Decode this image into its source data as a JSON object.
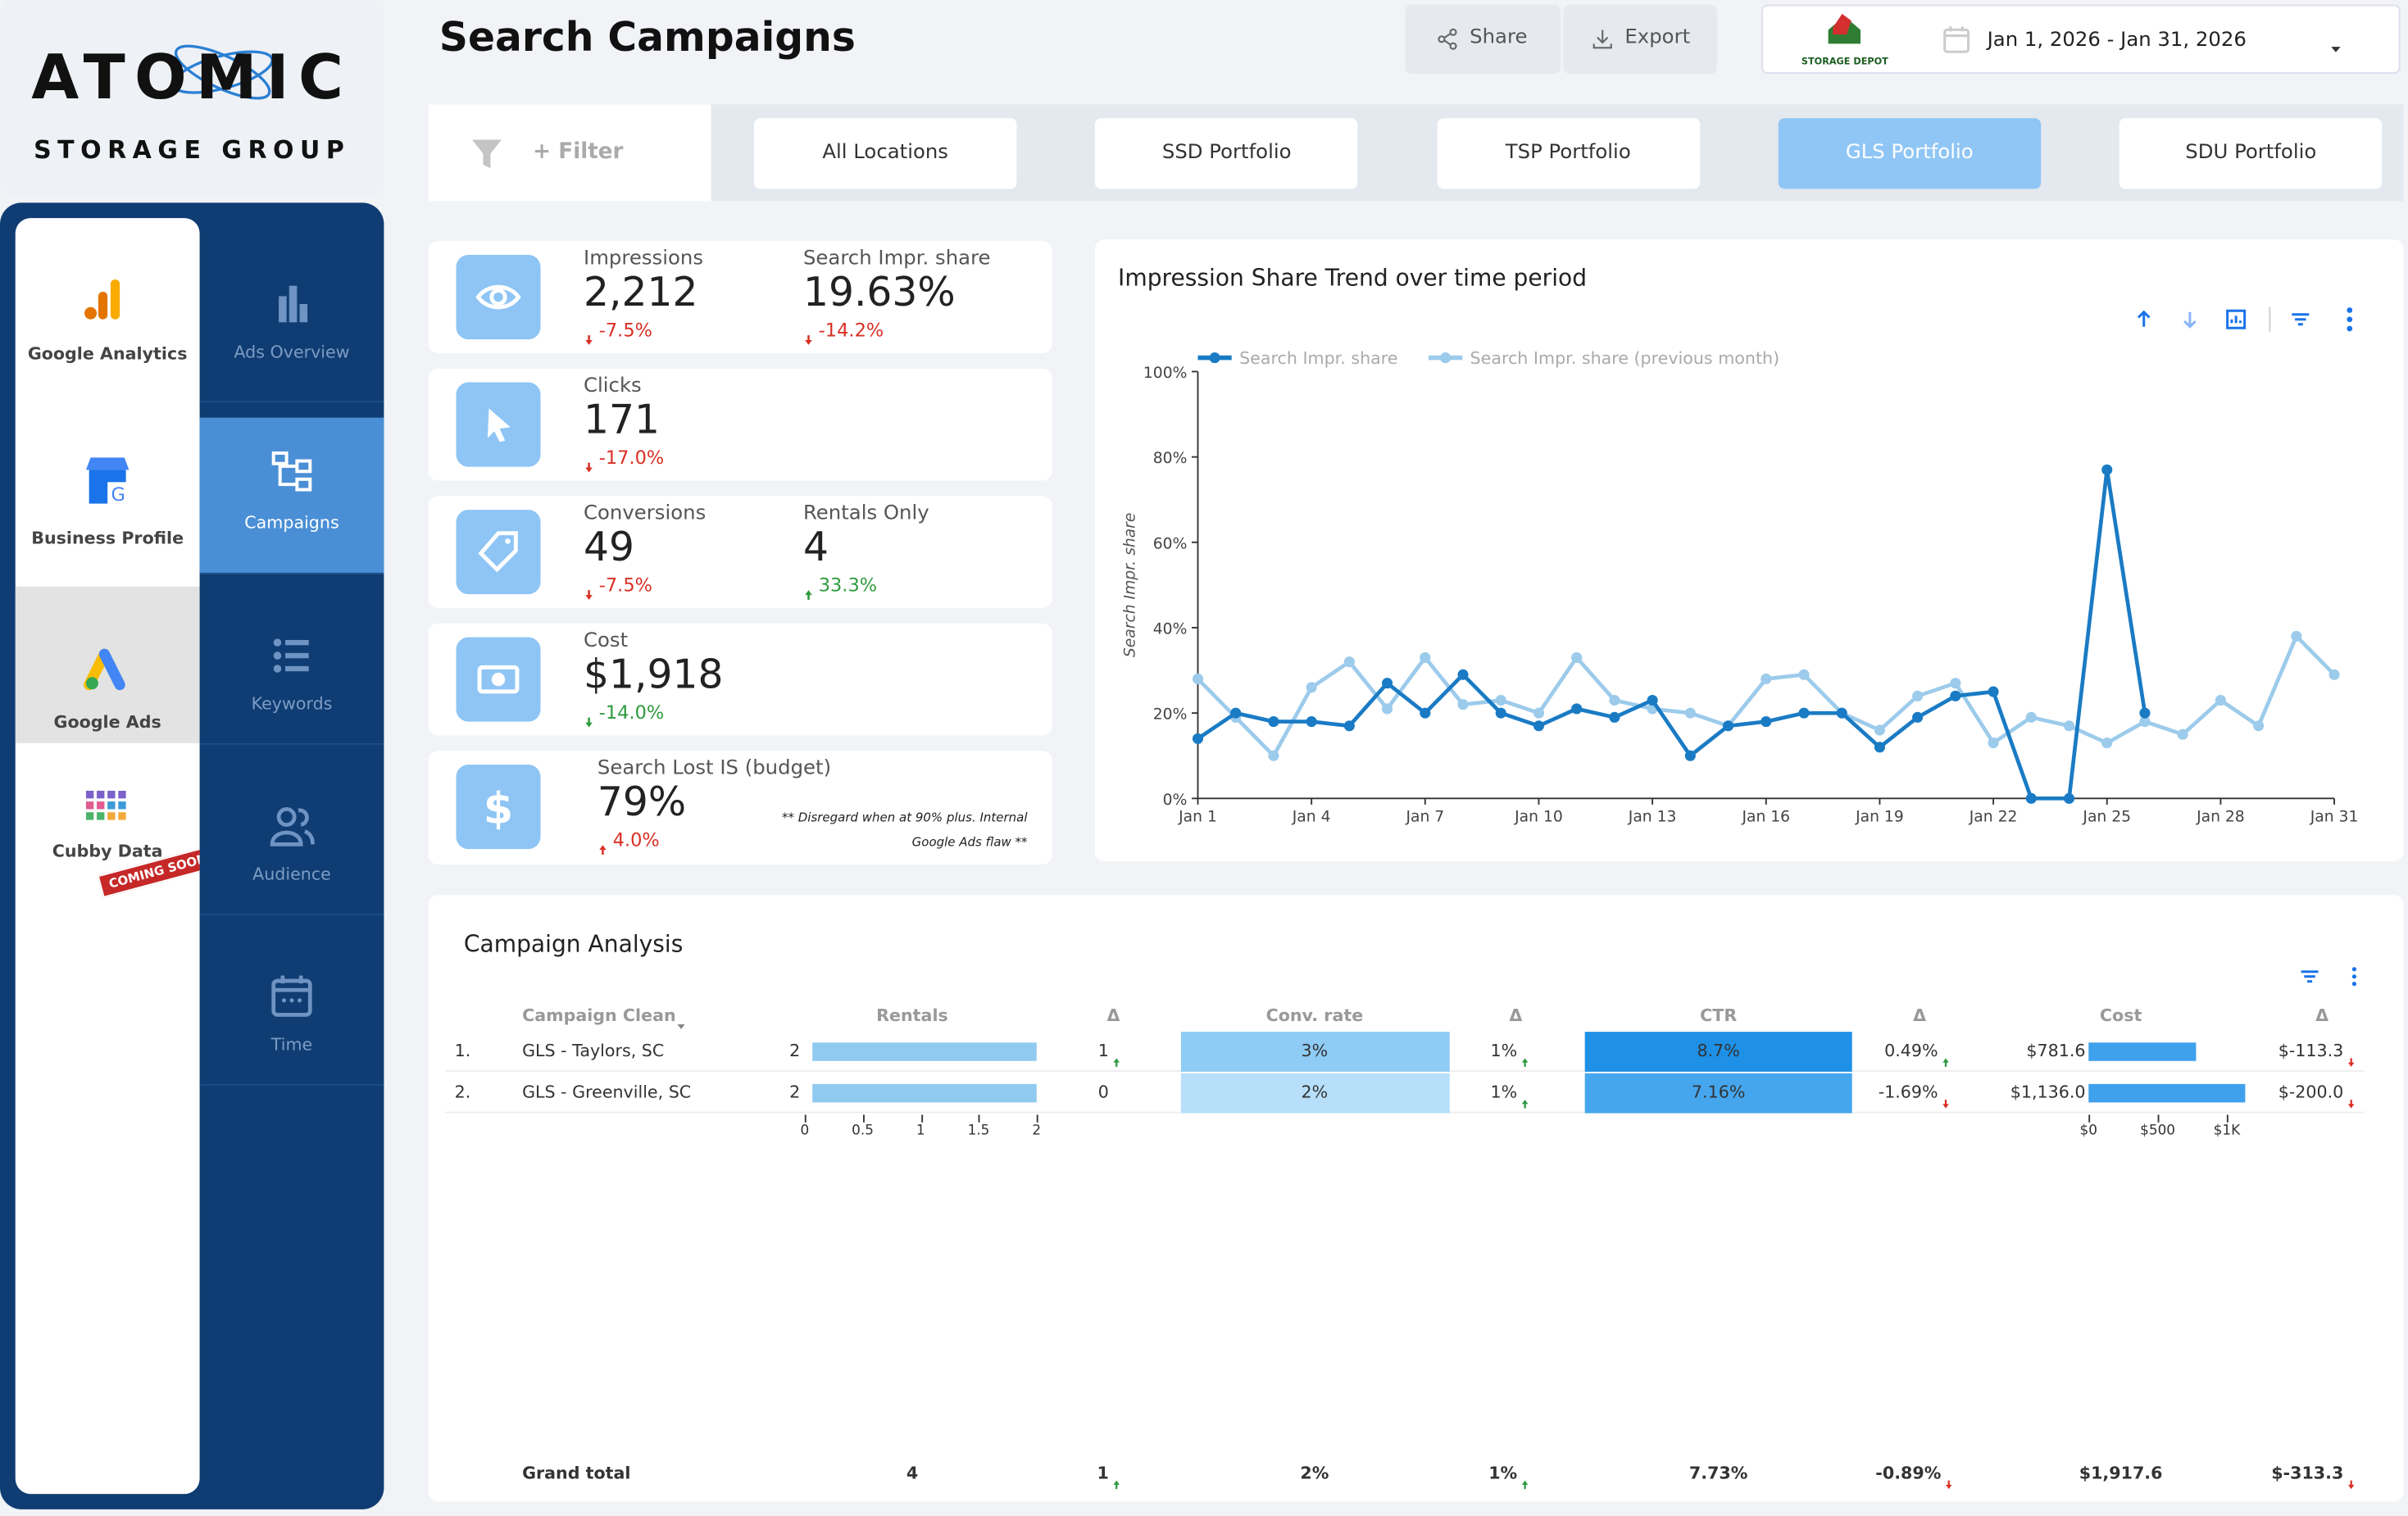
{
  "brand": {
    "name": "ATOMIC",
    "tagline": "STORAGE GROUP"
  },
  "nav": {
    "sources": [
      "Google Analytics",
      "Business Profile",
      "Google Ads",
      "Cubby Data"
    ],
    "badge": "COMING SOON",
    "active_source": 2,
    "pages": [
      "Ads Overview",
      "Campaigns",
      "Keywords",
      "Audience",
      "Time"
    ],
    "active_page": 1
  },
  "header": {
    "title": "Search Campaigns",
    "share": "Share",
    "export": "Export",
    "client_logo": "STORAGE DEPOT",
    "date_range": "Jan 1, 2026 - Jan 31, 2026"
  },
  "filters": {
    "filter": "+ Filter",
    "tabs": [
      "All Locations",
      "SSD Portfolio",
      "TSP Portfolio",
      "GLS Portfolio",
      "SDU Portfolio"
    ],
    "active": 3
  },
  "kpis": [
    {
      "metrics": [
        {
          "label": "Impressions",
          "value": "2,212",
          "delta": "-7.5%",
          "trend": "down",
          "good": false
        },
        {
          "label": "Search Impr. share",
          "value": "19.63%",
          "delta": "-14.2%",
          "trend": "down",
          "good": false
        }
      ]
    },
    {
      "metrics": [
        {
          "label": "Clicks",
          "value": "171",
          "delta": "-17.0%",
          "trend": "down",
          "good": false
        }
      ]
    },
    {
      "metrics": [
        {
          "label": "Conversions",
          "value": "49",
          "delta": "-7.5%",
          "trend": "down",
          "good": false
        },
        {
          "label": "Rentals Only",
          "value": "4",
          "delta": "33.3%",
          "trend": "up",
          "good": true
        }
      ]
    },
    {
      "metrics": [
        {
          "label": "Cost",
          "value": "$1,918",
          "delta": "-14.0%",
          "trend": "down",
          "good": true
        }
      ]
    },
    {
      "metrics": [
        {
          "label": "Search Lost IS (budget)",
          "value": "79%",
          "delta": "4.0%",
          "trend": "up",
          "good": false
        }
      ],
      "note": "** Disregard when at 90% plus. Internal Google Ads flaw **"
    }
  ],
  "chart_data": {
    "type": "line",
    "title": "Impression Share Trend over time period",
    "y_label": "Search Impr. share",
    "categories": [
      "Jan 1",
      null,
      null,
      "Jan 4",
      null,
      null,
      "Jan 7",
      null,
      null,
      "Jan 10",
      null,
      null,
      "Jan 13",
      null,
      null,
      "Jan 16",
      null,
      null,
      "Jan 19",
      null,
      null,
      "Jan 22",
      null,
      null,
      "Jan 25",
      null,
      null,
      "Jan 28",
      null,
      null,
      "Jan 31"
    ],
    "series": [
      {
        "name": "Search Impr. share",
        "color": "#1a7bc4",
        "values": [
          14,
          20,
          18,
          18,
          17,
          27,
          20,
          29,
          20,
          17,
          21,
          19,
          23,
          10,
          17,
          18,
          20,
          20,
          12,
          19,
          24,
          25,
          0,
          0,
          77,
          20,
          null,
          null,
          null,
          null,
          null
        ]
      },
      {
        "name": "Search Impr. share (previous month)",
        "color": "#9ccbeb",
        "values": [
          28,
          19,
          10,
          26,
          32,
          21,
          33,
          22,
          23,
          20,
          33,
          23,
          21,
          20,
          17,
          28,
          29,
          20,
          16,
          24,
          27,
          13,
          19,
          17,
          13,
          18,
          15,
          23,
          17,
          38,
          29
        ]
      }
    ],
    "ylim": [
      0,
      100
    ],
    "yticks": [
      {
        "value": 0,
        "label": "0%"
      },
      {
        "value": 20,
        "label": "20%"
      },
      {
        "value": 40,
        "label": "40%"
      },
      {
        "value": 60,
        "label": "60%"
      },
      {
        "value": 80,
        "label": "80%"
      },
      {
        "value": 100,
        "label": "100%"
      }
    ],
    "grid": false,
    "legend": "top-left"
  },
  "table": {
    "title": "Campaign Analysis",
    "columns": [
      "Campaign Clean",
      "Rentals",
      "Δ",
      "Conv. rate",
      "Δ",
      "CTR",
      "Δ",
      "Cost",
      "Δ"
    ],
    "rows": [
      {
        "index": "1.",
        "campaign": "GLS - Taylors, SC",
        "rentals": 2,
        "rentals_delta": "1",
        "rentals_trend": "up",
        "conv": "3%",
        "conv_delta": "1%",
        "conv_trend": "up",
        "ctr": "8.7%",
        "ctr_delta": "0.49%",
        "ctr_trend": "up",
        "cost": {
          "value": 781.6,
          "label": "$781.6"
        },
        "cost_delta": "$-113.3",
        "cost_trend": "down"
      },
      {
        "index": "2.",
        "campaign": "GLS - Greenville, SC",
        "rentals": 2,
        "rentals_delta": "0",
        "conv": "2%",
        "conv_delta": "1%",
        "conv_trend": "up",
        "ctr": "7.16%",
        "ctr_delta": "-1.69%",
        "ctr_trend": "down",
        "cost": {
          "value": 1136.0,
          "label": "$1,136.0"
        },
        "cost_delta": "$-200.0",
        "cost_trend": "down"
      }
    ],
    "rentals_lim": [
      0,
      2
    ],
    "rentals_ticks": [
      0,
      0.5,
      1,
      1.5,
      2
    ],
    "cost_lim": [
      0,
      1000
    ],
    "cost_ticks": [
      {
        "value": 0,
        "label": "$0"
      },
      {
        "value": 500,
        "label": "$500"
      },
      {
        "value": 1000,
        "label": "$1K"
      }
    ],
    "total": {
      "label": "Grand total",
      "rentals": 4,
      "rentals_delta": "1",
      "rentals_trend": "up",
      "conv": "2%",
      "conv_delta": "1%",
      "conv_trend": "up",
      "ctr": "7.73%",
      "ctr_delta": "-0.89%",
      "ctr_trend": "down",
      "cost": "$1,917.6",
      "cost_delta": "$-313.3",
      "cost_trend": "down"
    }
  }
}
